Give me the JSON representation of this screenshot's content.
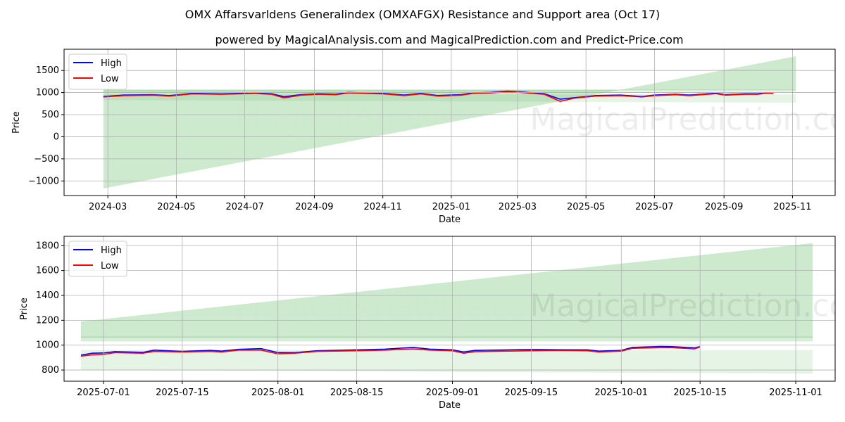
{
  "title": "OMX Affarsvarldens Generalindex (OMXAFGX) Resistance and Support area (Oct 17)",
  "subtitle": "powered by MagicalAnalysis.com and MagicalPrediction.com and Predict-Price.com",
  "watermarks": [
    "MagicalAnalysis.com",
    "MagicalPrediction.com"
  ],
  "colors": {
    "high": "#0000ff",
    "low": "#ff0000",
    "band": "#4caf50"
  },
  "chart_data": [
    {
      "type": "line",
      "xlabel": "Date",
      "ylabel": "Price",
      "ylim": [
        -1330,
        1980
      ],
      "xlim": [
        "2024-01-22",
        "2025-12-09"
      ],
      "yticks": [
        1500,
        1000,
        500,
        0,
        -500,
        -1000
      ],
      "ytick_labels": [
        "1500",
        "1000",
        "500",
        "0",
        "−500",
        "−1000"
      ],
      "xticks": [
        "2024-03-01",
        "2024-05-01",
        "2024-07-01",
        "2024-09-01",
        "2024-11-01",
        "2025-01-01",
        "2025-03-01",
        "2025-05-01",
        "2025-07-01",
        "2025-09-01",
        "2025-11-01"
      ],
      "xtick_labels": [
        "2024-03",
        "2024-05",
        "2024-07",
        "2024-09",
        "2024-11",
        "2025-01",
        "2025-03",
        "2025-05",
        "2025-07",
        "2025-09",
        "2025-11"
      ],
      "legend": {
        "position": "top-left",
        "entries": [
          "High",
          "Low"
        ]
      },
      "grid": true,
      "bands": {
        "start": "2024-02-26",
        "end": "2025-11-04",
        "rising_line": [
          -1170,
          1820
        ],
        "flat_level": 1060,
        "resistance": [
          1020,
          1070
        ],
        "support_top": 960,
        "support_bottom": [
          830,
          770
        ]
      },
      "dates": [
        "2024-02-26",
        "2024-03-15",
        "2024-04-10",
        "2024-04-25",
        "2024-05-15",
        "2024-06-10",
        "2024-07-10",
        "2024-07-25",
        "2024-08-05",
        "2024-08-20",
        "2024-09-05",
        "2024-09-20",
        "2024-10-01",
        "2024-11-01",
        "2024-11-20",
        "2024-12-05",
        "2024-12-20",
        "2025-01-10",
        "2025-01-20",
        "2025-02-05",
        "2025-02-20",
        "2025-03-05",
        "2025-03-25",
        "2025-04-08",
        "2025-04-20",
        "2025-05-10",
        "2025-06-01",
        "2025-06-20",
        "2025-07-01",
        "2025-07-20",
        "2025-08-01",
        "2025-08-25",
        "2025-09-02",
        "2025-09-20",
        "2025-10-01",
        "2025-10-08",
        "2025-10-15"
      ],
      "series": [
        {
          "name": "High",
          "values": [
            912,
            942,
            950,
            930,
            982,
            970,
            992,
            972,
            905,
            952,
            972,
            962,
            1002,
            982,
            942,
            982,
            932,
            952,
            992,
            1002,
            1032,
            1012,
            972,
            850,
            882,
            932,
            942,
            912,
            942,
            962,
            942,
            987,
            952,
            972,
            972,
            997,
            990
          ]
        },
        {
          "name": "Low",
          "values": [
            900,
            930,
            940,
            920,
            970,
            960,
            980,
            960,
            880,
            940,
            960,
            950,
            990,
            970,
            930,
            970,
            920,
            940,
            980,
            990,
            1020,
            1000,
            960,
            800,
            870,
            920,
            930,
            900,
            930,
            950,
            930,
            975,
            940,
            960,
            960,
            985,
            980
          ]
        }
      ]
    },
    {
      "type": "line",
      "xlabel": "Date",
      "ylabel": "Price",
      "ylim": [
        710,
        1875
      ],
      "xlim": [
        "2025-06-24",
        "2025-11-08"
      ],
      "yticks": [
        1800,
        1600,
        1400,
        1200,
        1000,
        800
      ],
      "ytick_labels": [
        "1800",
        "1600",
        "1400",
        "1200",
        "1000",
        "800"
      ],
      "xticks": [
        "2025-07-01",
        "2025-07-15",
        "2025-08-01",
        "2025-08-15",
        "2025-09-01",
        "2025-09-15",
        "2025-10-01",
        "2025-10-15",
        "2025-11-01"
      ],
      "xtick_labels": [
        "2025-07-01",
        "2025-07-15",
        "2025-08-01",
        "2025-08-15",
        "2025-09-01",
        "2025-09-15",
        "2025-10-01",
        "2025-10-15",
        "2025-11-01"
      ],
      "legend": {
        "position": "top-left",
        "entries": [
          "High",
          "Low"
        ]
      },
      "grid": true,
      "bands": {
        "start": "2025-06-27",
        "end": "2025-11-04",
        "rising_line": [
          1190,
          1820
        ],
        "flat_level": 1060,
        "resistance": [
          1030,
          1070
        ],
        "support_top": 960,
        "support_bottom": [
          800,
          770
        ]
      },
      "dates": [
        "2025-06-27",
        "2025-06-29",
        "2025-07-01",
        "2025-07-03",
        "2025-07-08",
        "2025-07-10",
        "2025-07-15",
        "2025-07-20",
        "2025-07-22",
        "2025-07-25",
        "2025-07-29",
        "2025-08-01",
        "2025-08-04",
        "2025-08-08",
        "2025-08-15",
        "2025-08-20",
        "2025-08-25",
        "2025-08-28",
        "2025-09-01",
        "2025-09-03",
        "2025-09-05",
        "2025-09-15",
        "2025-09-20",
        "2025-09-25",
        "2025-09-27",
        "2025-10-01",
        "2025-10-03",
        "2025-10-08",
        "2025-10-10",
        "2025-10-14",
        "2025-10-15"
      ],
      "series": [
        {
          "name": "High",
          "values": [
            920,
            935,
            937,
            948,
            942,
            960,
            950,
            958,
            952,
            966,
            972,
            940,
            940,
            955,
            962,
            968,
            982,
            968,
            962,
            945,
            958,
            965,
            963,
            962,
            952,
            958,
            982,
            990,
            988,
            978,
            988
          ]
        },
        {
          "name": "Low",
          "values": [
            912,
            922,
            925,
            940,
            935,
            950,
            945,
            950,
            945,
            960,
            960,
            930,
            935,
            950,
            955,
            960,
            970,
            960,
            955,
            935,
            948,
            955,
            958,
            955,
            945,
            952,
            975,
            980,
            980,
            970,
            985
          ]
        }
      ]
    }
  ]
}
